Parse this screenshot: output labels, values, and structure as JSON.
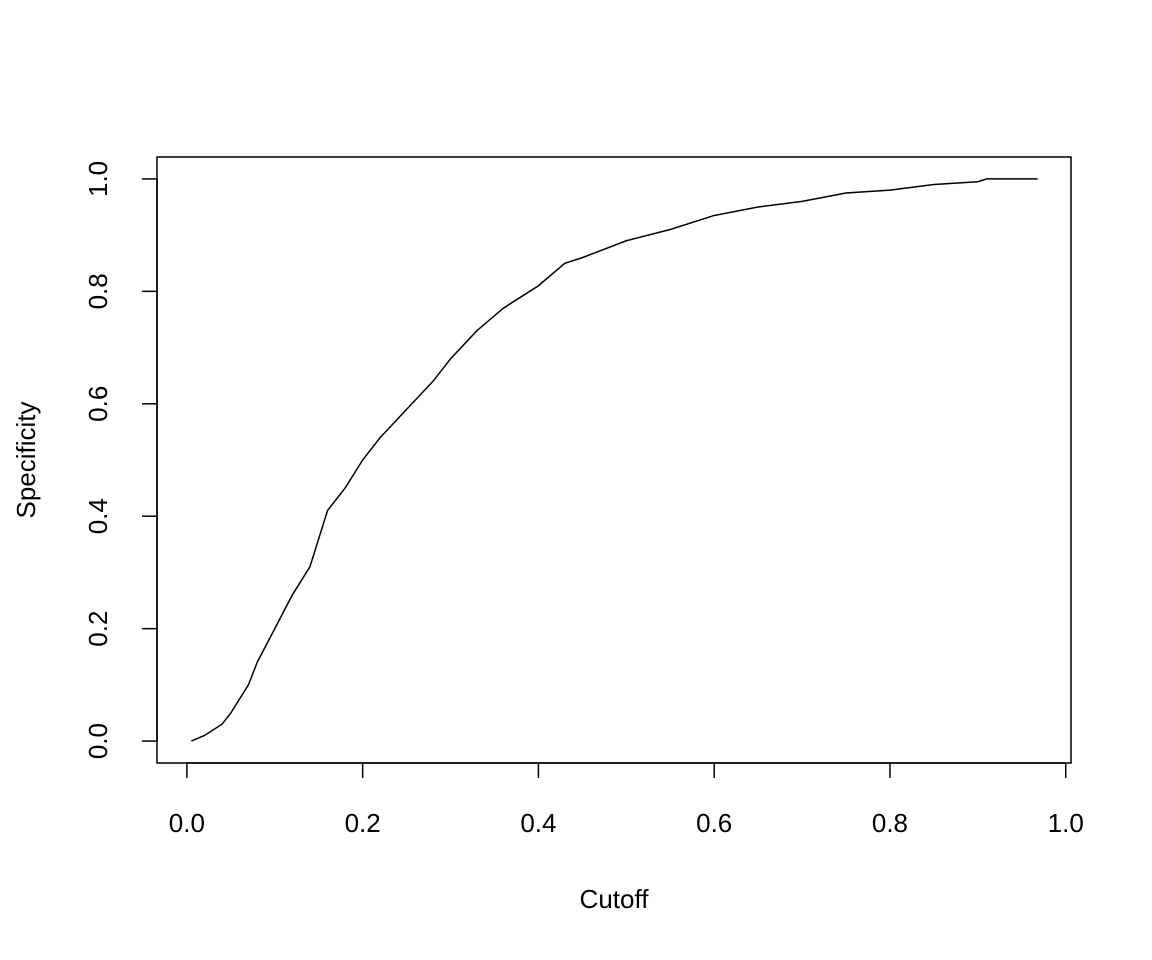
{
  "chart_data": {
    "type": "line",
    "x_label": "Cutoff",
    "y_label": "Specificity",
    "x": [
      0.005,
      0.02,
      0.04,
      0.05,
      0.07,
      0.08,
      0.1,
      0.12,
      0.14,
      0.15,
      0.16,
      0.18,
      0.2,
      0.22,
      0.25,
      0.28,
      0.3,
      0.33,
      0.36,
      0.4,
      0.43,
      0.45,
      0.5,
      0.55,
      0.6,
      0.65,
      0.7,
      0.75,
      0.8,
      0.85,
      0.9,
      0.91,
      0.968
    ],
    "values": [
      0,
      0.01,
      0.03,
      0.05,
      0.1,
      0.14,
      0.2,
      0.26,
      0.31,
      0.36,
      0.41,
      0.45,
      0.5,
      0.54,
      0.59,
      0.64,
      0.68,
      0.73,
      0.77,
      0.81,
      0.85,
      0.86,
      0.89,
      0.91,
      0.935,
      0.95,
      0.96,
      0.975,
      0.98,
      0.99,
      0.995,
      1.0,
      1.0
    ],
    "color": "#000000",
    "xlim": [
      -0.034,
      1.006
    ],
    "ylim": [
      -0.039,
      1.039
    ],
    "xticks": [
      {
        "value": 0,
        "label": "0.0"
      },
      0.2,
      0.4,
      0.6,
      0.8,
      {
        "value": 1,
        "label": "1.0"
      }
    ],
    "yticks": [
      {
        "value": 0,
        "label": "0.0"
      },
      0.2,
      0.4,
      0.6,
      0.8,
      {
        "value": 1,
        "label": "1.0"
      }
    ],
    "grid": false
  }
}
